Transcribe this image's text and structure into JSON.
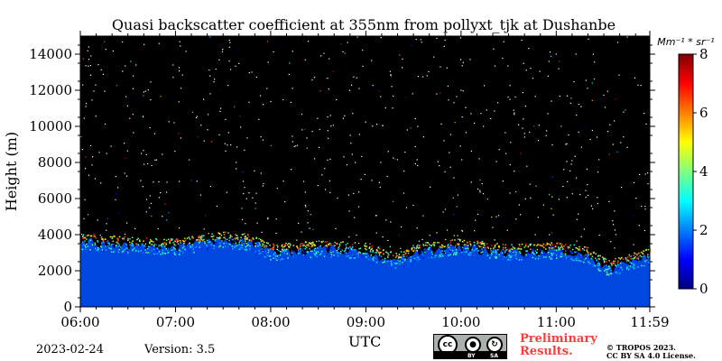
{
  "chart_data": {
    "type": "heatmap",
    "title": "Quasi backscatter coefficient at 355nm from pollyxt_tjk at Dushanbe",
    "xlabel": "UTC",
    "ylabel": "Height (m)",
    "x_ticks": [
      "06:00",
      "07:00",
      "08:00",
      "09:00",
      "10:00",
      "11:00",
      "11:59"
    ],
    "x_range_hours": [
      6.0,
      11.983
    ],
    "y_ticks": [
      0,
      2000,
      4000,
      6000,
      8000,
      10000,
      12000,
      14000
    ],
    "y_range": [
      0,
      15000
    ],
    "colorbar": {
      "label": "Mm⁻¹ * sr⁻¹",
      "ticks": [
        0,
        2,
        4,
        6,
        8
      ],
      "range": [
        0,
        8
      ],
      "colormap": "jet"
    },
    "layer_top_height_m": [
      {
        "time": 6.0,
        "height": 4100
      },
      {
        "time": 6.5,
        "height": 3900
      },
      {
        "time": 7.0,
        "height": 3800
      },
      {
        "time": 7.5,
        "height": 4200
      },
      {
        "time": 7.8,
        "height": 4000
      },
      {
        "time": 8.0,
        "height": 3500
      },
      {
        "time": 8.5,
        "height": 3700
      },
      {
        "time": 9.0,
        "height": 3600
      },
      {
        "time": 9.3,
        "height": 3000
      },
      {
        "time": 9.6,
        "height": 3600
      },
      {
        "time": 10.0,
        "height": 3800
      },
      {
        "time": 10.5,
        "height": 3500
      },
      {
        "time": 11.0,
        "height": 3600
      },
      {
        "time": 11.3,
        "height": 3400
      },
      {
        "time": 11.55,
        "height": 2600
      },
      {
        "time": 11.983,
        "height": 3300
      }
    ],
    "near_surface_value": 0.5,
    "layer_top_value": 5
  },
  "footer": {
    "date": "2023-02-24",
    "version": "Version: 3.5",
    "preliminary": [
      "Preliminary",
      "Results."
    ],
    "copyright": [
      "© TROPOS 2023.",
      "CC BY SA 4.0 License."
    ],
    "cc_badge": {
      "main": "cc",
      "by": "BY",
      "sa": "SA"
    }
  },
  "colors": {
    "background": "#000000",
    "surface_layer": "#0047e0",
    "colormap_stops": [
      "#00007f",
      "#0000ff",
      "#007fff",
      "#00ffff",
      "#7fff7f",
      "#ffff00",
      "#ff7f00",
      "#ff0000",
      "#7f0000"
    ],
    "preliminary_text": "#ff3b3b"
  }
}
